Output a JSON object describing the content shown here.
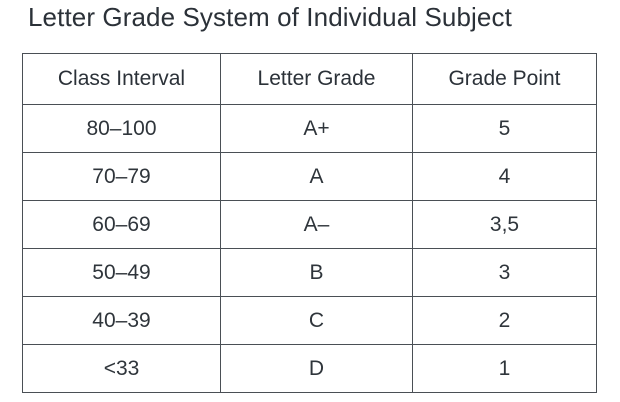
{
  "title": "Letter Grade System of Individual Subject",
  "table": {
    "headers": [
      "Class Interval",
      "Letter Grade",
      "Grade Point"
    ],
    "rows": [
      [
        "80–100",
        "A+",
        "5"
      ],
      [
        "70–79",
        "A",
        "4"
      ],
      [
        "60–69",
        "A–",
        "3,5"
      ],
      [
        "50–49",
        "B",
        "3"
      ],
      [
        "40–39",
        "C",
        "2"
      ],
      [
        "<33",
        "D",
        "1"
      ]
    ]
  }
}
